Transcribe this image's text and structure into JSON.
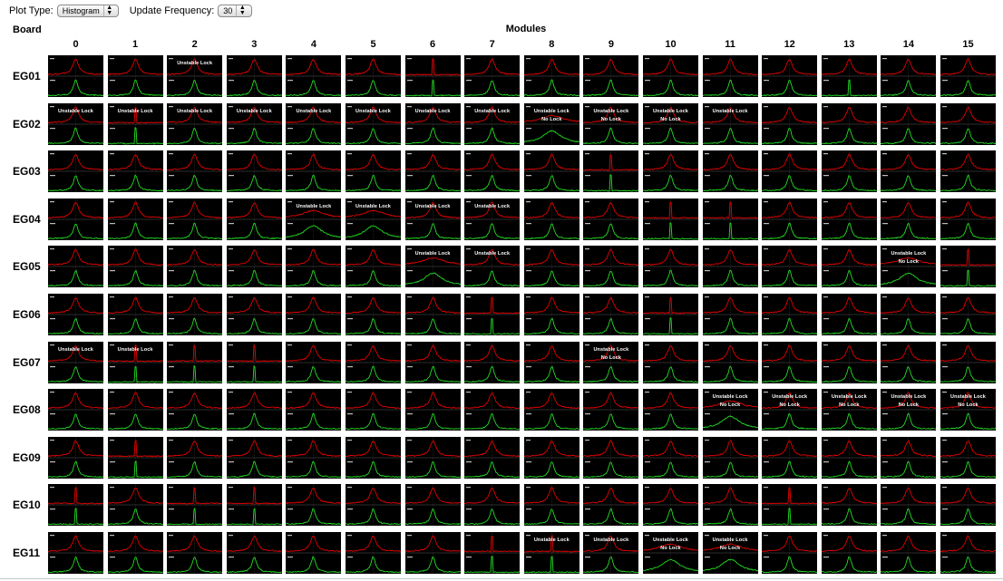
{
  "controls": {
    "plot_type_label": "Plot Type:",
    "plot_type_value": "Histogram",
    "update_freq_label": "Update Frequency:",
    "update_freq_value": "30"
  },
  "headers": {
    "board": "Board",
    "modules": "Modules"
  },
  "modules": [
    "0",
    "1",
    "2",
    "3",
    "4",
    "5",
    "6",
    "7",
    "8",
    "9",
    "10",
    "11",
    "12",
    "13",
    "14",
    "15"
  ],
  "boards": [
    "EG01",
    "EG02",
    "EG03",
    "EG04",
    "EG05",
    "EG06",
    "EG07",
    "EG08",
    "EG09",
    "EG10",
    "EG11"
  ],
  "status_text": {
    "unstable": "Unstable Lock",
    "nolock": "No Lock"
  },
  "colors": {
    "trace_top": "#e60000",
    "trace_bottom": "#22dd22",
    "grid": "#5a5a5a"
  },
  "status_grid": [
    [
      "",
      "",
      "U",
      "",
      "",
      "",
      "",
      "",
      "",
      "",
      "",
      "",
      "",
      "",
      "",
      ""
    ],
    [
      "U",
      "U",
      "U",
      "U",
      "U",
      "U",
      "U",
      "U",
      "UN",
      "UN",
      "UN",
      "U",
      "",
      "",
      "",
      ""
    ],
    [
      "",
      "",
      "",
      "",
      "",
      "",
      "",
      "",
      "",
      "",
      "",
      "",
      "",
      "",
      "",
      ""
    ],
    [
      "",
      "",
      "",
      "",
      "U",
      "U",
      "U",
      "U",
      "",
      "",
      "",
      "",
      "",
      "",
      "",
      ""
    ],
    [
      "",
      "",
      "",
      "",
      "",
      "",
      "U",
      "U",
      "",
      "",
      "",
      "",
      "",
      "",
      "UN",
      ""
    ],
    [
      "",
      "",
      "",
      "",
      "",
      "",
      "",
      "",
      "",
      "",
      "",
      "",
      "",
      "",
      "",
      ""
    ],
    [
      "U",
      "U",
      "",
      "",
      "",
      "",
      "",
      "",
      "",
      "UN",
      "",
      "",
      "",
      "",
      "",
      ""
    ],
    [
      "",
      "",
      "",
      "",
      "",
      "",
      "",
      "",
      "",
      "",
      "",
      "UN",
      "UN",
      "UN",
      "UN",
      "UN"
    ],
    [
      "",
      "",
      "",
      "",
      "",
      "",
      "",
      "",
      "",
      "",
      "",
      "",
      "",
      "",
      "",
      ""
    ],
    [
      "",
      "",
      "",
      "",
      "",
      "",
      "",
      "",
      "",
      "",
      "",
      "",
      "",
      "",
      "",
      ""
    ],
    [
      "",
      "",
      "",
      "",
      "",
      "",
      "",
      "",
      "U",
      "U",
      "UN",
      "UN",
      "",
      "",
      "",
      ""
    ]
  ],
  "wide_grid": [
    [
      "",
      "",
      "",
      "",
      "",
      "",
      "",
      "",
      "",
      "",
      "",
      "",
      "",
      "",
      "",
      ""
    ],
    [
      "",
      "",
      "",
      "",
      "",
      "",
      "",
      "",
      "B",
      "",
      "",
      "",
      "",
      "",
      "",
      ""
    ],
    [
      "",
      "",
      "",
      "",
      "",
      "",
      "",
      "",
      "",
      "",
      "",
      "",
      "",
      "",
      "",
      ""
    ],
    [
      "",
      "",
      "",
      "",
      "T",
      "T",
      "",
      "",
      "",
      "",
      "",
      "",
      "",
      "",
      "",
      ""
    ],
    [
      "",
      "",
      "",
      "",
      "",
      "",
      "T",
      "",
      "",
      "",
      "",
      "",
      "",
      "",
      "W",
      ""
    ],
    [
      "",
      "",
      "",
      "",
      "",
      "",
      "",
      "",
      "",
      "",
      "",
      "",
      "",
      "",
      "",
      ""
    ],
    [
      "",
      "",
      "",
      "",
      "",
      "",
      "",
      "",
      "",
      "",
      "",
      "",
      "",
      "",
      "",
      ""
    ],
    [
      "",
      "",
      "",
      "",
      "",
      "",
      "",
      "",
      "",
      "",
      "",
      "W",
      "",
      "",
      "",
      ""
    ],
    [
      "",
      "",
      "",
      "",
      "",
      "",
      "",
      "",
      "",
      "",
      "",
      "",
      "",
      "",
      "",
      ""
    ],
    [
      "",
      "",
      "",
      "",
      "",
      "",
      "",
      "",
      "",
      "",
      "",
      "",
      "",
      "",
      "",
      ""
    ],
    [
      "",
      "",
      "",
      "",
      "",
      "",
      "",
      "",
      "",
      "",
      "W",
      "W",
      "",
      "",
      "",
      ""
    ]
  ],
  "spike_grid": [
    [
      "",
      "",
      "",
      "",
      "",
      "",
      "S",
      "",
      "",
      "",
      "",
      "",
      "",
      "s",
      "",
      ""
    ],
    [
      "",
      "S",
      "",
      "",
      "",
      "",
      "",
      "",
      "",
      "",
      "",
      "",
      "",
      "",
      "",
      ""
    ],
    [
      "",
      "",
      "",
      "",
      "",
      "",
      "",
      "",
      "",
      "S",
      "",
      "",
      "",
      "",
      "",
      ""
    ],
    [
      "",
      "",
      "",
      "",
      "",
      "",
      "",
      "",
      "",
      "",
      "S",
      "S",
      "",
      "",
      "",
      ""
    ],
    [
      "",
      "",
      "",
      "",
      "",
      "",
      "",
      "",
      "",
      "",
      "",
      "",
      "",
      "",
      "",
      "S"
    ],
    [
      "",
      "",
      "",
      "",
      "",
      "",
      "",
      "S",
      "",
      "",
      "S",
      "",
      "",
      "",
      "",
      ""
    ],
    [
      "",
      "S",
      "S",
      "S",
      "",
      "",
      "",
      "",
      "",
      "",
      "",
      "",
      "",
      "",
      "",
      ""
    ],
    [
      "",
      "",
      "",
      "",
      "",
      "",
      "",
      "",
      "",
      "",
      "",
      "",
      "",
      "",
      "",
      ""
    ],
    [
      "",
      "S",
      "",
      "",
      "",
      "",
      "",
      "",
      "",
      "",
      "",
      "",
      "",
      "",
      "",
      ""
    ],
    [
      "S",
      "",
      "S",
      "S",
      "",
      "",
      "",
      "",
      "",
      "",
      "",
      "",
      "S",
      "",
      "",
      ""
    ],
    [
      "",
      "",
      "",
      "",
      "",
      "",
      "",
      "S",
      "S",
      "",
      "",
      "",
      "",
      "",
      "",
      ""
    ]
  ]
}
